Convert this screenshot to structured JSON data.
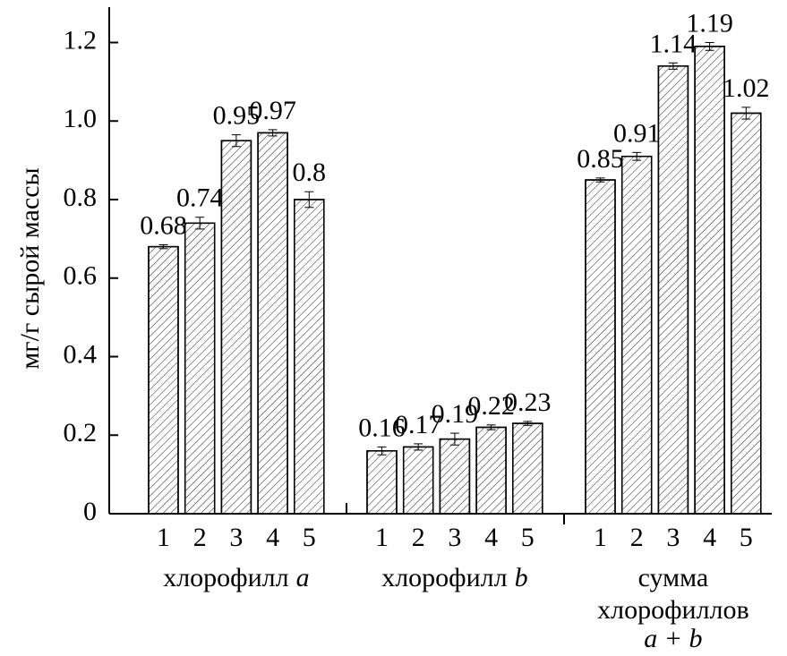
{
  "chart_data": {
    "type": "bar",
    "y_label": "мг/г сырой массы",
    "categories": [
      "1",
      "2",
      "3",
      "4",
      "5"
    ],
    "groups": [
      {
        "label": [
          "хлорофилл"
        ],
        "label_italic": "a",
        "values": [
          0.68,
          0.74,
          0.95,
          0.97,
          0.8
        ],
        "errors": [
          0.005,
          0.015,
          0.015,
          0.008,
          0.02
        ]
      },
      {
        "label": [
          "хлорофилл"
        ],
        "label_italic": "b",
        "values": [
          0.16,
          0.17,
          0.19,
          0.22,
          0.23
        ],
        "errors": [
          0.01,
          0.008,
          0.015,
          0.006,
          0.005
        ]
      },
      {
        "label": [
          "сумма",
          "хлорофиллов"
        ],
        "label_italic": "a + b",
        "values": [
          0.85,
          0.91,
          1.14,
          1.19,
          1.02
        ],
        "errors": [
          0.005,
          0.01,
          0.008,
          0.01,
          0.015
        ]
      }
    ],
    "color": "#ffffff",
    "ylim": [
      0,
      1.29
    ],
    "yticks": [
      0,
      0.2,
      0.4,
      0.6,
      0.8,
      {
        "value": 1,
        "label": "1.0"
      },
      1.2
    ]
  }
}
